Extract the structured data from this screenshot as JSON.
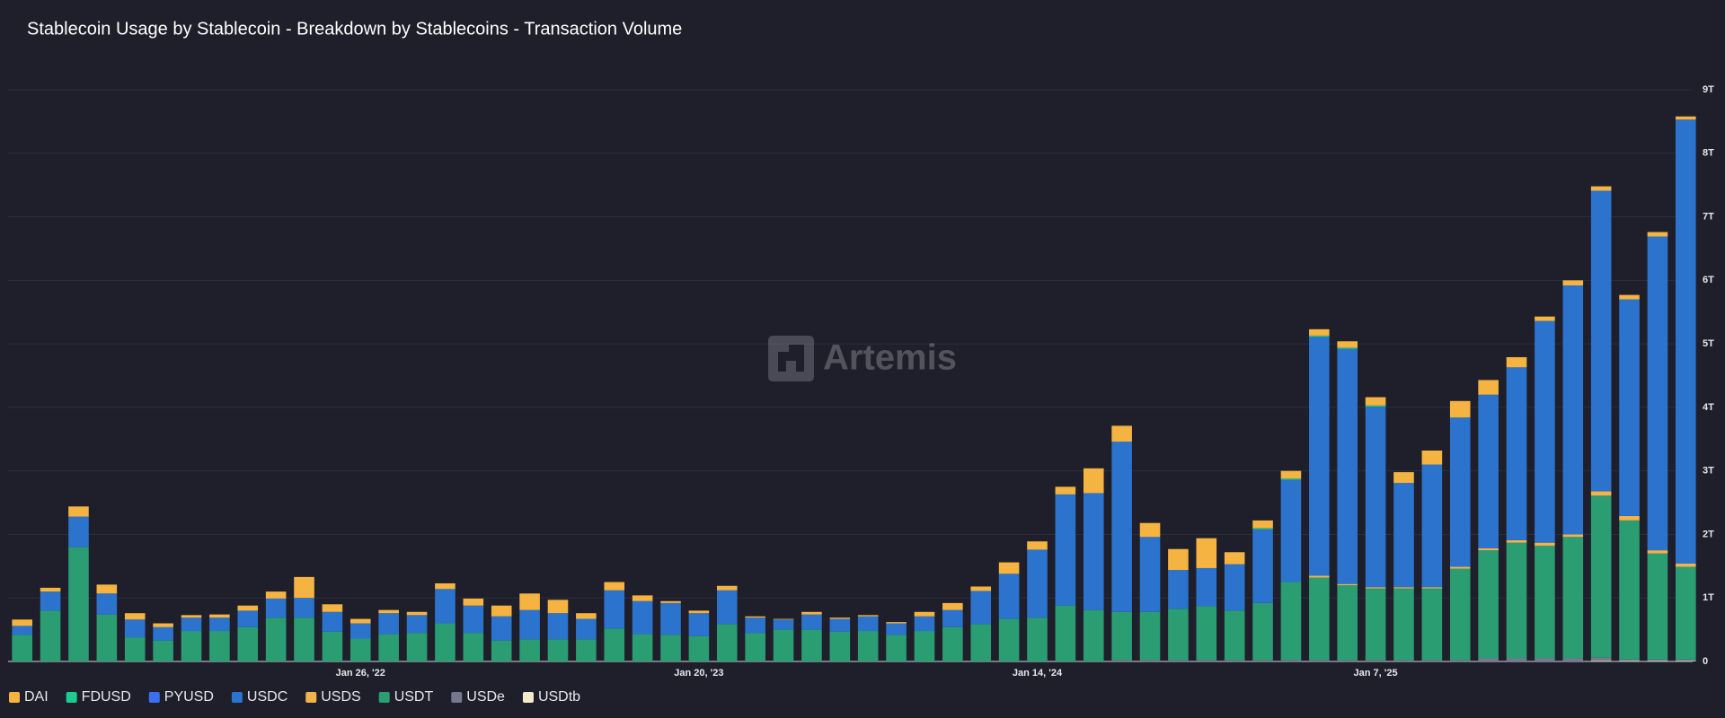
{
  "chart_data": {
    "type": "stacked_bar",
    "title": "Stablecoin Usage by Stablecoin - Breakdown by Stablecoins - Transaction Volume",
    "watermark": "Artemis",
    "categories": [
      null,
      null,
      null,
      null,
      null,
      null,
      null,
      null,
      null,
      null,
      null,
      null,
      "Jan 26, '22",
      null,
      null,
      null,
      null,
      null,
      null,
      null,
      null,
      null,
      null,
      null,
      "Jan 20, '23",
      null,
      null,
      null,
      null,
      null,
      null,
      null,
      null,
      null,
      null,
      null,
      "Jan 14, '24",
      null,
      null,
      null,
      null,
      null,
      null,
      null,
      null,
      null,
      null,
      null,
      "Jan 7, '25",
      null,
      null,
      null,
      null,
      null,
      null,
      null,
      null,
      null,
      null,
      null
    ],
    "ylim": [
      0,
      9
    ],
    "yticks": [
      0,
      {
        "value": 1,
        "label": "1T"
      },
      {
        "value": 2,
        "label": "2T"
      },
      {
        "value": 3,
        "label": "3T"
      },
      {
        "value": 4,
        "label": "4T"
      },
      {
        "value": 5,
        "label": "5T"
      },
      {
        "value": 6,
        "label": "6T"
      },
      {
        "value": 7,
        "label": "7T"
      },
      {
        "value": 8,
        "label": "8T"
      },
      {
        "value": 9,
        "label": "9T"
      }
    ],
    "grid": true,
    "legend": "bottom-left",
    "series": [
      {
        "name": "DAI",
        "color": "#f5b342",
        "values": [
          0.1,
          0.06,
          0.16,
          0.14,
          0.1,
          0.06,
          0.04,
          0.05,
          0.08,
          0.11,
          0.33,
          0.12,
          0.07,
          0.05,
          0.05,
          0.09,
          0.11,
          0.17,
          0.26,
          0.21,
          0.09,
          0.13,
          0.09,
          0.03,
          0.04,
          0.07,
          0.02,
          0.01,
          0.04,
          0.02,
          0.02,
          0.02,
          0.07,
          0.11,
          0.07,
          0.18,
          0.13,
          0.12,
          0.39,
          0.25,
          0.22,
          0.33,
          0.47,
          0.19,
          0.12,
          0.12,
          0.1,
          0.1,
          0.13,
          0.17,
          0.22,
          0.26,
          0.23,
          0.16,
          0.07,
          0.08,
          0.07,
          0.07,
          0.07,
          0.05
        ]
      },
      {
        "name": "FDUSD",
        "color": "#1ecb8c",
        "values": [
          0,
          0,
          0,
          0,
          0,
          0,
          0,
          0,
          0,
          0,
          0,
          0,
          0,
          0,
          0,
          0,
          0,
          0,
          0,
          0,
          0,
          0,
          0,
          0,
          0,
          0,
          0,
          0,
          0,
          0,
          0,
          0,
          0,
          0,
          0,
          0,
          0,
          0,
          0,
          0,
          0,
          0,
          0,
          0,
          0.02,
          0.02,
          0.02,
          0.02,
          0.02,
          0,
          0,
          0,
          0,
          0,
          0,
          0,
          0,
          0,
          0,
          0
        ]
      },
      {
        "name": "PYUSD",
        "color": "#3b6ff0",
        "values": [
          0,
          0,
          0,
          0,
          0,
          0,
          0,
          0,
          0,
          0,
          0,
          0,
          0,
          0,
          0,
          0,
          0,
          0,
          0,
          0,
          0,
          0,
          0,
          0,
          0,
          0,
          0,
          0,
          0,
          0,
          0,
          0,
          0,
          0,
          0,
          0,
          0,
          0,
          0,
          0,
          0,
          0,
          0,
          0,
          0,
          0,
          0,
          0,
          0,
          0,
          0,
          0,
          0,
          0,
          0,
          0,
          0,
          0,
          0,
          0
        ]
      },
      {
        "name": "USDC",
        "color": "#2b73cc",
        "values": [
          0.14,
          0.3,
          0.48,
          0.33,
          0.28,
          0.21,
          0.21,
          0.21,
          0.26,
          0.3,
          0.31,
          0.31,
          0.24,
          0.33,
          0.28,
          0.54,
          0.43,
          0.38,
          0.46,
          0.41,
          0.32,
          0.6,
          0.52,
          0.5,
          0.36,
          0.53,
          0.24,
          0.16,
          0.24,
          0.2,
          0.23,
          0.18,
          0.23,
          0.27,
          0.52,
          0.71,
          1.07,
          1.75,
          1.84,
          2.68,
          1.18,
          0.61,
          0.6,
          0.73,
          1.16,
          1.61,
          3.76,
          3.7,
          2.84,
          1.64,
          1.93,
          2.35,
          2.42,
          2.72,
          3.49,
          3.92,
          4.73,
          3.41,
          4.94,
          6.99
        ]
      },
      {
        "name": "USDS",
        "color": "#f2b24c",
        "values": [
          0,
          0,
          0,
          0,
          0,
          0,
          0,
          0,
          0,
          0,
          0,
          0,
          0,
          0,
          0,
          0,
          0,
          0,
          0,
          0,
          0,
          0,
          0,
          0,
          0,
          0,
          0,
          0,
          0,
          0,
          0,
          0,
          0,
          0,
          0,
          0,
          0,
          0,
          0,
          0,
          0,
          0,
          0,
          0,
          0,
          0,
          0.03,
          0.02,
          0.02,
          0.02,
          0.02,
          0.03,
          0.03,
          0.04,
          0.05,
          0.04,
          0.07,
          0.07,
          0.05,
          0.05
        ]
      },
      {
        "name": "USDT",
        "color": "#2a9d72",
        "values": [
          0.42,
          0.8,
          1.8,
          0.74,
          0.38,
          0.33,
          0.48,
          0.48,
          0.54,
          0.69,
          0.69,
          0.47,
          0.36,
          0.43,
          0.45,
          0.6,
          0.45,
          0.33,
          0.35,
          0.35,
          0.35,
          0.52,
          0.43,
          0.42,
          0.4,
          0.59,
          0.45,
          0.5,
          0.5,
          0.47,
          0.48,
          0.42,
          0.48,
          0.54,
          0.59,
          0.67,
          0.69,
          0.88,
          0.81,
          0.76,
          0.76,
          0.81,
          0.85,
          0.78,
          0.9,
          1.23,
          1.3,
          1.18,
          1.13,
          1.13,
          1.13,
          1.44,
          1.7,
          1.82,
          1.77,
          1.91,
          2.55,
          2.19,
          1.67,
          1.46
        ]
      },
      {
        "name": "USDe",
        "color": "#77778f",
        "values": [
          0,
          0,
          0,
          0,
          0,
          0,
          0,
          0,
          0,
          0,
          0,
          0,
          0,
          0,
          0,
          0,
          0,
          0,
          0,
          0,
          0,
          0,
          0,
          0,
          0,
          0,
          0,
          0,
          0,
          0,
          0,
          0,
          0,
          0,
          0,
          0,
          0,
          0,
          0,
          0.02,
          0.02,
          0.02,
          0.02,
          0.02,
          0.02,
          0.02,
          0.02,
          0.02,
          0.02,
          0.02,
          0.02,
          0.02,
          0.05,
          0.05,
          0.05,
          0.05,
          0.05,
          0.02,
          0.02,
          0.02
        ]
      },
      {
        "name": "USDtb",
        "color": "#f3ecc8",
        "values": [
          0,
          0,
          0,
          0,
          0,
          0,
          0,
          0,
          0,
          0,
          0,
          0,
          0,
          0,
          0,
          0,
          0,
          0,
          0,
          0,
          0,
          0,
          0,
          0,
          0,
          0,
          0,
          0,
          0,
          0,
          0,
          0,
          0,
          0,
          0,
          0,
          0,
          0,
          0,
          0,
          0,
          0,
          0,
          0,
          0,
          0,
          0,
          0,
          0,
          0,
          0,
          0,
          0,
          0,
          0,
          0,
          0.01,
          0.01,
          0.01,
          0.01
        ]
      }
    ]
  }
}
